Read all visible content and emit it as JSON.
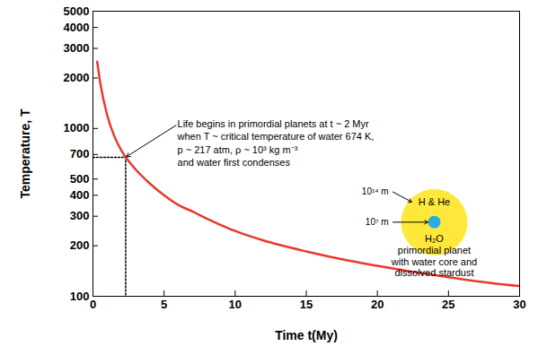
{
  "chart_data": {
    "type": "line",
    "x_label": "Time t(My)",
    "y_label": "Temperature, T",
    "log": "y",
    "xlim": [
      0,
      30
    ],
    "ylim": [
      100,
      5000
    ],
    "xticks": [
      0,
      5,
      10,
      15,
      20,
      25,
      30
    ],
    "yticks": [
      100,
      200,
      300,
      400,
      500,
      700,
      1000,
      2000,
      3000,
      4000,
      5000
    ],
    "x": [
      0.3,
      0.5,
      1,
      1.5,
      2,
      2.5,
      3,
      4,
      5,
      6,
      7,
      8,
      10,
      12,
      15,
      18,
      20,
      22,
      25,
      28,
      30
    ],
    "values": [
      2500,
      1900,
      1200,
      900,
      740,
      640,
      570,
      470,
      400,
      350,
      320,
      290,
      245,
      215,
      185,
      163,
      152,
      142,
      130,
      120,
      115
    ],
    "color": "#e8392b",
    "line_style": "solid",
    "annotation": {
      "text": [
        "Life begins in primordial planets at t ~ 2 Myr",
        "when T ~ critical temperature of water 674 K,",
        "p ~ 217 atm, ρ ~ 10³ kg m⁻³",
        "and water first condenses"
      ],
      "x": 2.3,
      "y": 674
    },
    "inset": {
      "outer_label": "H & He",
      "outer_size": "10¹⁴ m",
      "inner_label": "H₂O",
      "inner_size": "10⁷ m",
      "caption": [
        "primordial planet",
        "with water core and",
        "dissolved stardust"
      ]
    }
  }
}
